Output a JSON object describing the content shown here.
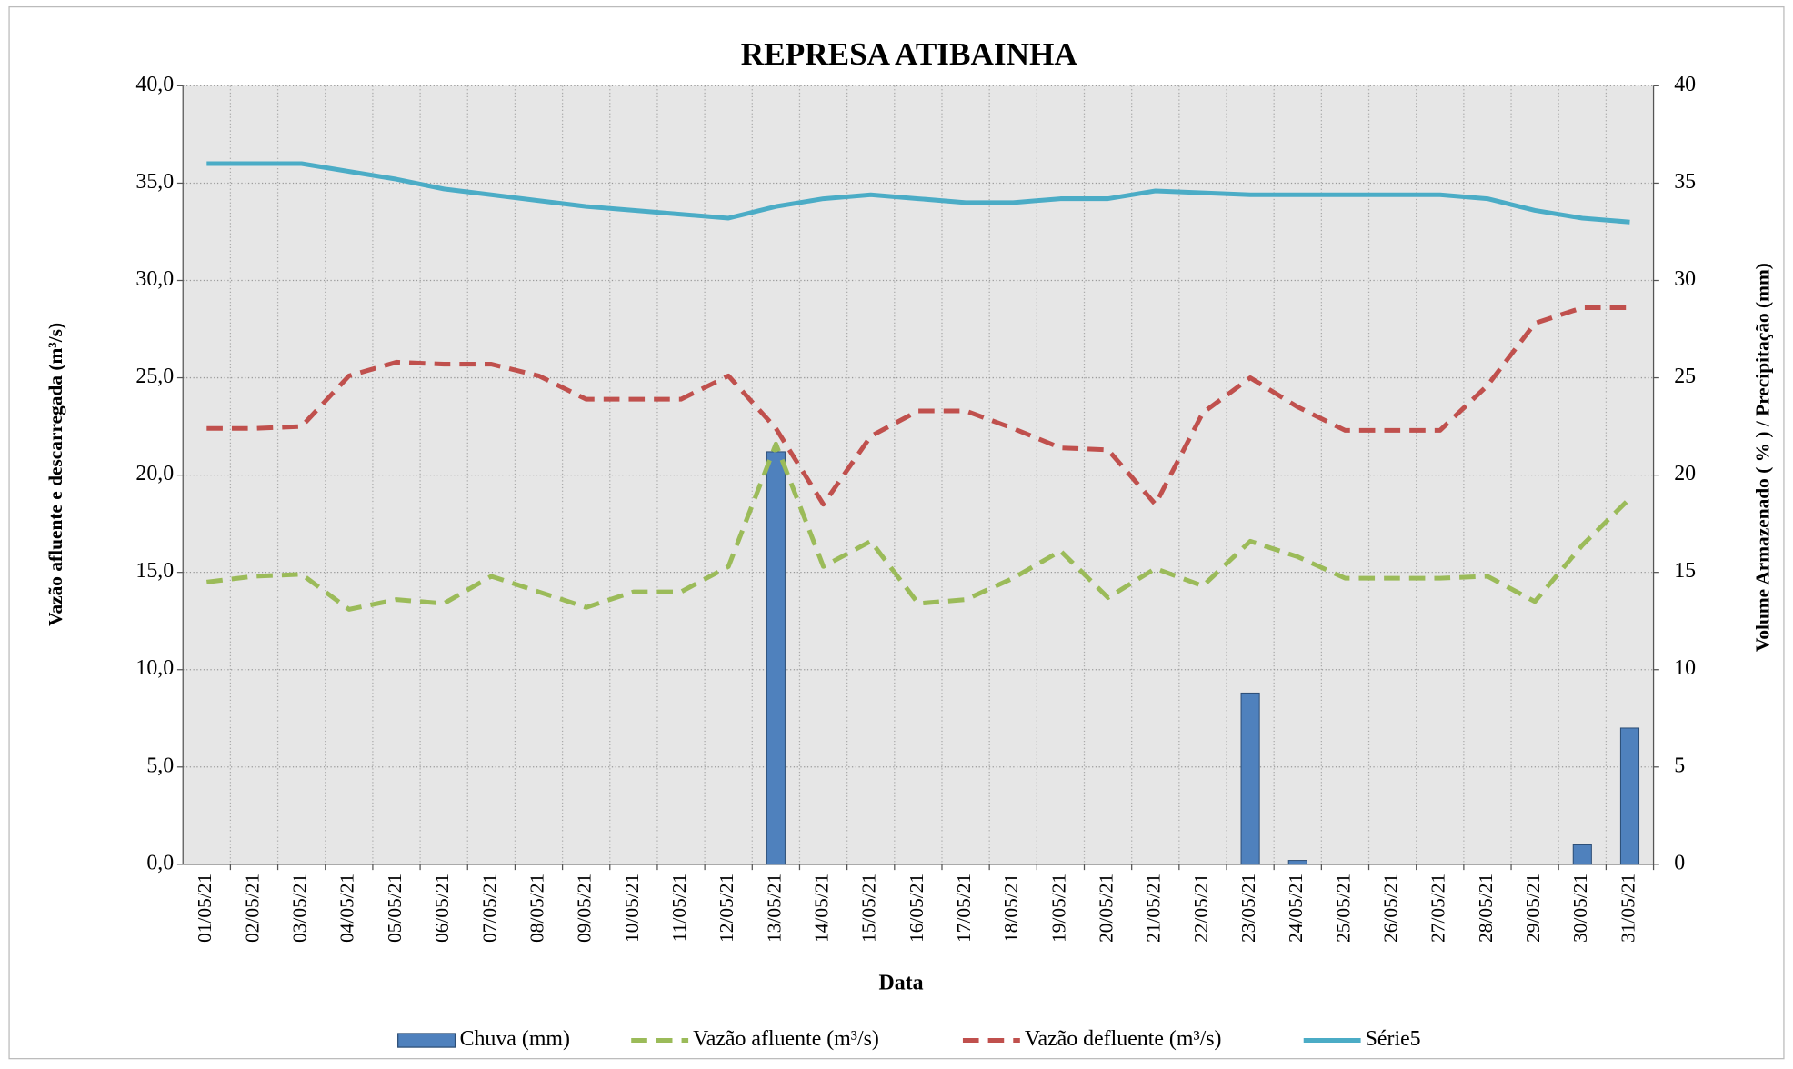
{
  "chart_data": {
    "type": "bar_line",
    "title": "REPRESA ATIBAINHA",
    "x_label": "Data",
    "y_label": "Vazão afluente e descarregada (m³/s)",
    "y2_label": "Volume Armazenado ( % ) / Precipitação  (mm)",
    "categories": [
      "01/05/21",
      "02/05/21",
      "03/05/21",
      "04/05/21",
      "05/05/21",
      "06/05/21",
      "07/05/21",
      "08/05/21",
      "09/05/21",
      "10/05/21",
      "11/05/21",
      "12/05/21",
      "13/05/21",
      "14/05/21",
      "15/05/21",
      "16/05/21",
      "17/05/21",
      "18/05/21",
      "19/05/21",
      "20/05/21",
      "21/05/21",
      "22/05/21",
      "23/05/21",
      "24/05/21",
      "25/05/21",
      "26/05/21",
      "27/05/21",
      "28/05/21",
      "29/05/21",
      "30/05/21",
      "31/05/21"
    ],
    "series": [
      {
        "name": "Chuva (mm)",
        "kind": "bar",
        "axis": "y2",
        "color": "#4f81bd",
        "values": [
          0,
          0,
          0,
          0,
          0,
          0,
          0,
          0,
          0,
          0,
          0,
          0,
          21.2,
          0,
          0,
          0,
          0,
          0,
          0,
          0,
          0,
          0,
          8.8,
          0.2,
          0,
          0,
          0,
          0,
          0,
          1.0,
          7.0
        ]
      },
      {
        "name": "Vazão afluente (m³/s)",
        "kind": "dashed-line",
        "color": "#9bbb59",
        "values": [
          14.5,
          14.8,
          14.9,
          13.1,
          13.6,
          13.4,
          14.8,
          14.0,
          13.2,
          14.0,
          14.0,
          15.3,
          21.6,
          15.3,
          16.6,
          13.4,
          13.6,
          14.7,
          16.1,
          13.7,
          15.2,
          14.3,
          16.6,
          15.8,
          14.7,
          14.7,
          14.7,
          14.8,
          13.5,
          16.4,
          18.8
        ]
      },
      {
        "name": "Vazão defluente (m³/s)",
        "kind": "dashed-line",
        "color": "#c0504d",
        "values": [
          22.4,
          22.4,
          22.5,
          25.1,
          25.8,
          25.7,
          25.7,
          25.1,
          23.9,
          23.9,
          23.9,
          25.1,
          22.4,
          18.5,
          22.0,
          23.3,
          23.3,
          22.4,
          21.4,
          21.3,
          18.5,
          23.2,
          25.0,
          23.5,
          22.3,
          22.3,
          22.3,
          24.6,
          27.8,
          28.6,
          28.6
        ]
      },
      {
        "name": "Série5",
        "kind": "line",
        "axis": "y2",
        "color": "#4bacc6",
        "values": [
          36,
          36,
          36,
          35.6,
          35.2,
          34.7,
          34.4,
          34.1,
          33.8,
          33.6,
          33.4,
          33.2,
          33.8,
          34.2,
          34.4,
          34.2,
          34.0,
          34.0,
          34.2,
          34.2,
          34.6,
          34.5,
          34.4,
          34.4,
          34.4,
          34.4,
          34.4,
          34.2,
          33.6,
          33.2,
          33.0
        ]
      }
    ],
    "ylim": [
      0,
      40
    ],
    "yticks": [
      {
        "value": 0,
        "label": "0,0"
      },
      {
        "value": 5,
        "label": "5,0"
      },
      {
        "value": 10,
        "label": "10,0"
      },
      {
        "value": 15,
        "label": "15,0"
      },
      {
        "value": 20,
        "label": "20,0"
      },
      {
        "value": 25,
        "label": "25,0"
      },
      {
        "value": 30,
        "label": "30,0"
      },
      {
        "value": 35,
        "label": "35,0"
      },
      {
        "value": 40,
        "label": "40,0"
      }
    ],
    "y2lim": [
      0,
      40
    ],
    "y2ticks": [
      0,
      5,
      10,
      15,
      20,
      25,
      30,
      35,
      40
    ],
    "grid": true,
    "legend": "bottom"
  }
}
